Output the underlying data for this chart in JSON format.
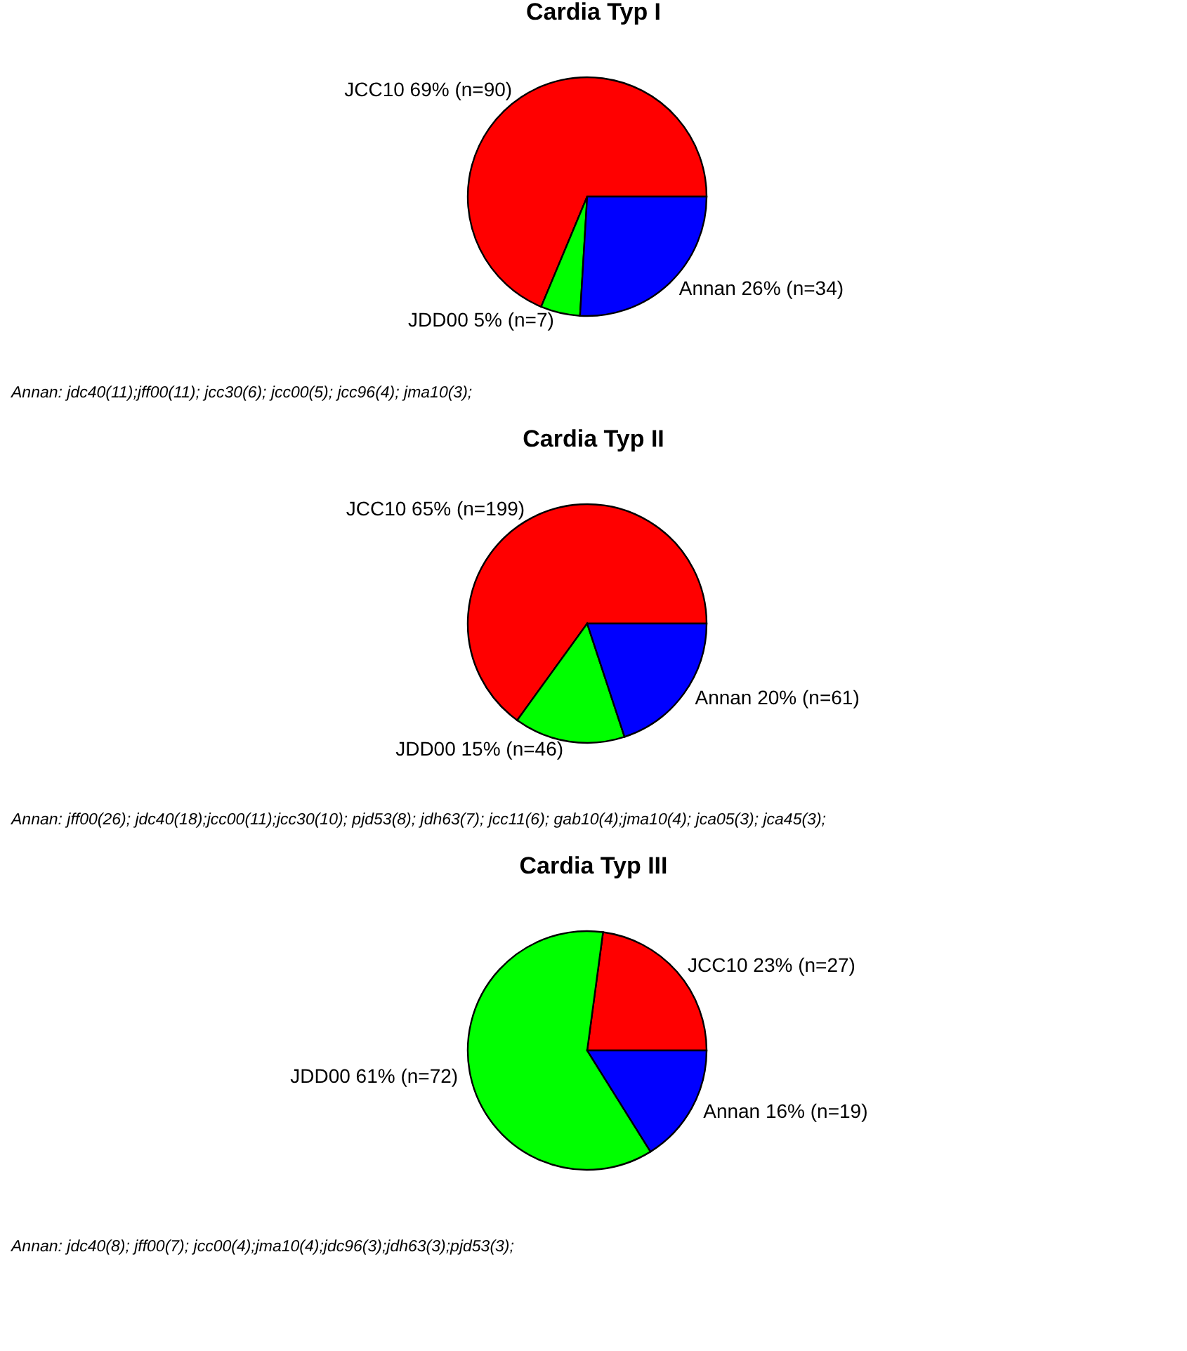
{
  "chart_data": [
    {
      "type": "pie",
      "title": "Cardia Typ I",
      "categories": [
        "JCC10",
        "JDD00",
        "Annan"
      ],
      "values": [
        90,
        7,
        34
      ],
      "value_labels": [
        "69% (n=90)",
        "5% (n=7)",
        "26% (n=34)"
      ],
      "colors": [
        "#ff0000",
        "#00ff00",
        "#0000ff"
      ],
      "legend": false,
      "annotations": [
        "Annan: jdc40(11);jff00(11);  jcc30(6);  jcc00(5);  jcc96(4); jma10(3);"
      ]
    },
    {
      "type": "pie",
      "title": "Cardia Typ II",
      "categories": [
        "JCC10",
        "JDD00",
        "Annan"
      ],
      "values": [
        199,
        46,
        61
      ],
      "value_labels": [
        "65% (n=199)",
        "15% (n=46)",
        "20% (n=61)"
      ],
      "colors": [
        "#ff0000",
        "#00ff00",
        "#0000ff"
      ],
      "legend": false,
      "annotations": [
        "Annan:  jff00(26); jdc40(18);jcc00(11);jcc30(10); pjd53(8);  jdh63(7);  jcc11(6); gab10(4);jma10(4); jca05(3);  jca45(3);"
      ]
    },
    {
      "type": "pie",
      "title": "Cardia Typ III",
      "categories": [
        "JCC10",
        "JDD00",
        "Annan"
      ],
      "values": [
        27,
        72,
        19
      ],
      "value_labels": [
        "23% (n=27)",
        "61% (n=72)",
        "16% (n=19)"
      ],
      "colors": [
        "#ff0000",
        "#00ff00",
        "#0000ff"
      ],
      "legend": false,
      "annotations": [
        "Annan: jdc40(8); jff00(7);  jcc00(4);jma10(4);jdc96(3);jdh63(3);pjd53(3);"
      ]
    }
  ]
}
